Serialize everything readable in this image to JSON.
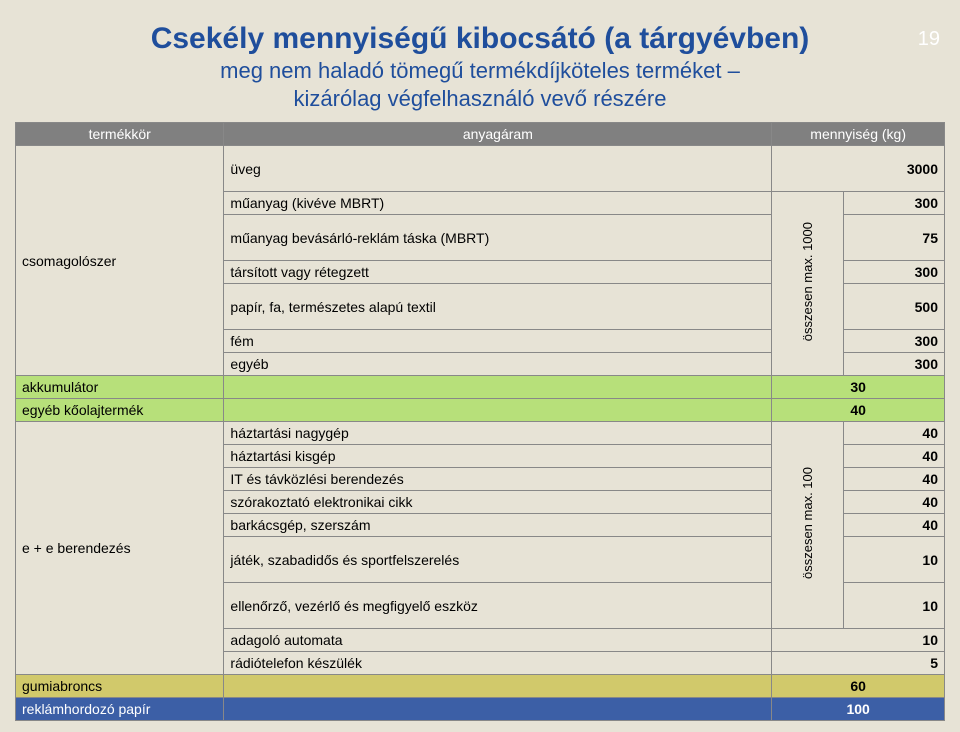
{
  "page_number": "19",
  "title": {
    "main": "Csekély mennyiségű kibocsátó (a tárgyévben)",
    "sub1": "meg nem haladó tömegű termékdíjköteles terméket –",
    "sub2": "kizárólag végfelhasználó vevő részére"
  },
  "header": {
    "c1": "termékkör",
    "c2": "anyagáram",
    "c3": "mennyiség (kg)"
  },
  "rows": {
    "uveg": {
      "label": "üveg",
      "value": "3000"
    },
    "csomag_label": "csomagolószer",
    "muanyag_kiveve": {
      "label": "műanyag (kivéve MBRT)",
      "value": "300"
    },
    "muanyag_mbrt": {
      "label": "műanyag bevásárló-reklám táska (MBRT)",
      "value": "75"
    },
    "tarsitott": {
      "label": "társított vagy rétegzett",
      "value": "300"
    },
    "papir": {
      "label": "papír, fa, természetes alapú textil",
      "value": "500"
    },
    "fem": {
      "label": "fém",
      "value": "300"
    },
    "egyeb": {
      "label": "egyéb",
      "value": "300"
    },
    "side1000": "összesen max. 1000",
    "akkumulator": {
      "label": "akkumulátor",
      "value": "30"
    },
    "koolaj": {
      "label": "egyéb kőolajtermék",
      "value": "40"
    },
    "ee_label": "e + e berendezés",
    "haz_nagy": {
      "label": "háztartási nagygép",
      "value": "40"
    },
    "haz_kis": {
      "label": "háztartási kisgép",
      "value": "40"
    },
    "it": {
      "label": "IT és távközlési berendezés",
      "value": "40"
    },
    "szorak": {
      "label": "szórakoztató elektronikai cikk",
      "value": "40"
    },
    "bark": {
      "label": "barkácsgép, szerszám",
      "value": "40"
    },
    "jatek": {
      "label": "játék, szabadidős és sportfelszerelés",
      "value": "10"
    },
    "ellenorzo": {
      "label": "ellenőrző, vezérlő és megfigyelő eszköz",
      "value": "10"
    },
    "side100": "összesen max. 100",
    "adagolo": {
      "label": "adagoló automata",
      "value": "10"
    },
    "radiotel": {
      "label": "rádiótelefon készülék",
      "value": "5"
    },
    "gumi": {
      "label": "gumiabroncs",
      "value": "60"
    },
    "reklam": {
      "label": "reklámhordozó papír",
      "value": "100"
    }
  }
}
